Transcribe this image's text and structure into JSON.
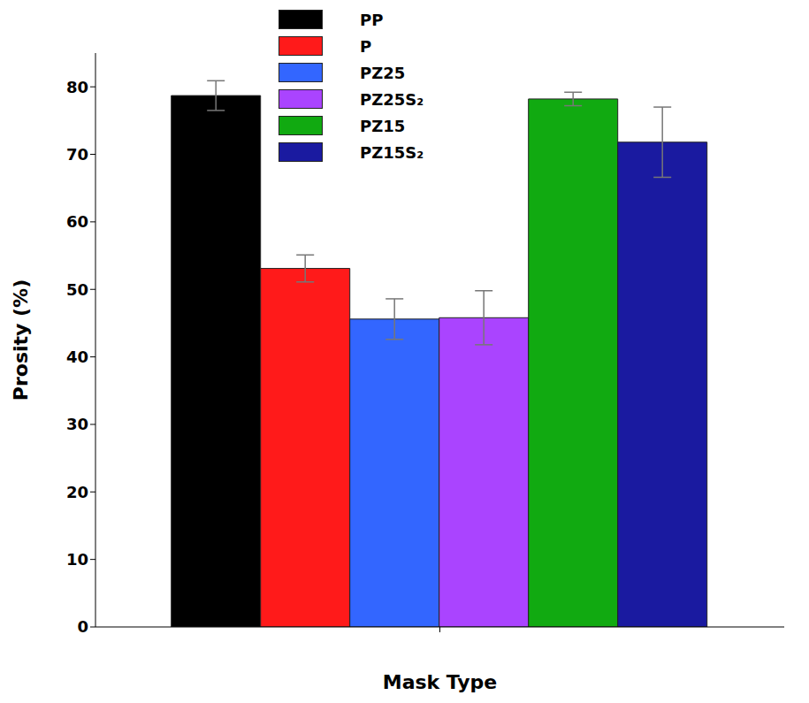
{
  "chart_data": {
    "type": "bar",
    "x_label": "Mask Type",
    "y_label": "Prosity (%)",
    "categories": [
      null
    ],
    "series": [
      {
        "name": "PP",
        "color": "#000000",
        "values": [
          78.7
        ],
        "errors": [
          2.2
        ]
      },
      {
        "name": "P",
        "color": "#ff1a1a",
        "values": [
          53.1
        ],
        "errors": [
          2.0
        ]
      },
      {
        "name": "PZ25",
        "color": "#3366ff",
        "values": [
          45.6
        ],
        "errors": [
          3.0
        ]
      },
      {
        "name": "PZ25S₂",
        "color": "#aa44ff",
        "values": [
          45.8
        ],
        "errors": [
          4.0
        ]
      },
      {
        "name": "PZ15",
        "color": "#11aa11",
        "values": [
          78.2
        ],
        "errors": [
          1.0
        ]
      },
      {
        "name": "PZ15S₂",
        "color": "#1a1aa0",
        "values": [
          71.8
        ],
        "errors": [
          5.2
        ]
      }
    ],
    "ylim": [
      0,
      85
    ],
    "yticks": [
      0,
      10,
      20,
      30,
      40,
      50,
      60,
      70,
      80
    ],
    "legend": "top"
  }
}
